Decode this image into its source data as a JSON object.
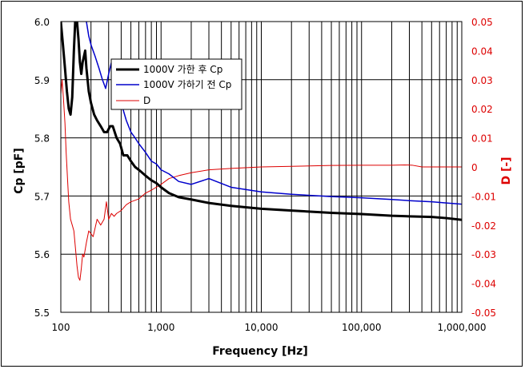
{
  "chart_data": {
    "type": "line",
    "xlabel": "Frequency [Hz]",
    "ylabel_left": "Cp [pF]",
    "ylabel_right": "D [-]",
    "x_scale": "log",
    "xlim": [
      100,
      1000000
    ],
    "ylim_left": [
      5.5,
      6.0
    ],
    "ylim_right": [
      -0.05,
      0.05
    ],
    "x_tick_labels": [
      "100",
      "1,000",
      "10,000",
      "100,000",
      "1,000,000"
    ],
    "x_tick_values": [
      100,
      1000,
      10000,
      100000,
      1000000
    ],
    "y_left_tick_labels": [
      "5.5",
      "5.6",
      "5.7",
      "5.8",
      "5.9",
      "6.0"
    ],
    "y_left_tick_values": [
      5.5,
      5.6,
      5.7,
      5.8,
      5.9,
      6.0
    ],
    "y_right_tick_labels": [
      "-0.05",
      "-0.04",
      "-0.03",
      "-0.02",
      "-0.01",
      "0",
      "0.01",
      "0.02",
      "0.03",
      "0.04",
      "0.05"
    ],
    "y_right_tick_values": [
      -0.05,
      -0.04,
      -0.03,
      -0.02,
      -0.01,
      0,
      0.01,
      0.02,
      0.03,
      0.04,
      0.05
    ],
    "grid": true,
    "legend_position": "upper-left-inside",
    "colors": {
      "black": "#000000",
      "blue": "#0000cc",
      "red": "#dd0000"
    },
    "series": [
      {
        "name": "1000V 가한 후 Cp",
        "axis": "left",
        "color": "#000000",
        "width": 3,
        "x": [
          100,
          105,
          110,
          115,
          120,
          125,
          130,
          135,
          140,
          145,
          150,
          155,
          160,
          165,
          170,
          175,
          180,
          190,
          200,
          215,
          230,
          250,
          270,
          290,
          310,
          330,
          360,
          390,
          420,
          460,
          500,
          550,
          600,
          700,
          800,
          900,
          1000,
          1200,
          1500,
          2000,
          3000,
          5000,
          10000,
          20000,
          50000,
          100000,
          200000,
          300000,
          500000,
          700000,
          1000000
        ],
        "y": [
          6.0,
          5.96,
          5.92,
          5.88,
          5.85,
          5.84,
          5.87,
          5.95,
          6.01,
          6.0,
          5.97,
          5.93,
          5.91,
          5.93,
          5.94,
          5.95,
          5.92,
          5.88,
          5.86,
          5.84,
          5.83,
          5.82,
          5.81,
          5.81,
          5.82,
          5.82,
          5.8,
          5.79,
          5.77,
          5.77,
          5.76,
          5.75,
          5.745,
          5.735,
          5.727,
          5.722,
          5.715,
          5.705,
          5.698,
          5.694,
          5.688,
          5.683,
          5.678,
          5.675,
          5.671,
          5.669,
          5.666,
          5.665,
          5.664,
          5.662,
          5.659
        ]
      },
      {
        "name": "1000V 가하기 전 Cp",
        "axis": "left",
        "color": "#0000cc",
        "width": 1.5,
        "x": [
          180,
          190,
          200,
          220,
          240,
          260,
          280,
          300,
          320,
          340,
          360,
          400,
          450,
          500,
          550,
          600,
          700,
          800,
          900,
          1000,
          1200,
          1500,
          2000,
          3000,
          5000,
          10000,
          20000,
          50000,
          100000,
          200000,
          300000,
          500000,
          700000,
          1000000
        ],
        "y": [
          6.0,
          5.975,
          5.96,
          5.94,
          5.92,
          5.9,
          5.885,
          5.91,
          5.93,
          5.91,
          5.89,
          5.86,
          5.83,
          5.81,
          5.8,
          5.79,
          5.775,
          5.76,
          5.755,
          5.745,
          5.738,
          5.725,
          5.72,
          5.73,
          5.715,
          5.707,
          5.703,
          5.699,
          5.697,
          5.694,
          5.692,
          5.69,
          5.688,
          5.686
        ]
      },
      {
        "name": "D",
        "axis": "right",
        "color": "#dd0000",
        "width": 1,
        "x": [
          100,
          103,
          106,
          110,
          113,
          117,
          120,
          125,
          130,
          135,
          140,
          145,
          150,
          155,
          160,
          165,
          170,
          180,
          190,
          200,
          210,
          230,
          250,
          270,
          285,
          300,
          320,
          340,
          360,
          400,
          450,
          500,
          600,
          700,
          800,
          1000,
          1200,
          1500,
          2000,
          3000,
          5000,
          10000,
          20000,
          50000,
          100000,
          200000,
          270000,
          320000,
          400000,
          600000,
          1000000
        ],
        "y": [
          0.025,
          0.03,
          0.024,
          0.015,
          0.005,
          -0.005,
          -0.012,
          -0.018,
          -0.02,
          -0.022,
          -0.028,
          -0.034,
          -0.038,
          -0.039,
          -0.035,
          -0.03,
          -0.031,
          -0.026,
          -0.022,
          -0.023,
          -0.024,
          -0.018,
          -0.02,
          -0.018,
          -0.012,
          -0.018,
          -0.016,
          -0.017,
          -0.016,
          -0.015,
          -0.013,
          -0.012,
          -0.011,
          -0.009,
          -0.008,
          -0.006,
          -0.004,
          -0.003,
          -0.002,
          -0.001,
          -0.0005,
          0.0,
          0.0002,
          0.0005,
          0.0006,
          0.0006,
          0.0007,
          0.0006,
          0.0,
          0.0,
          0.0
        ]
      }
    ]
  }
}
